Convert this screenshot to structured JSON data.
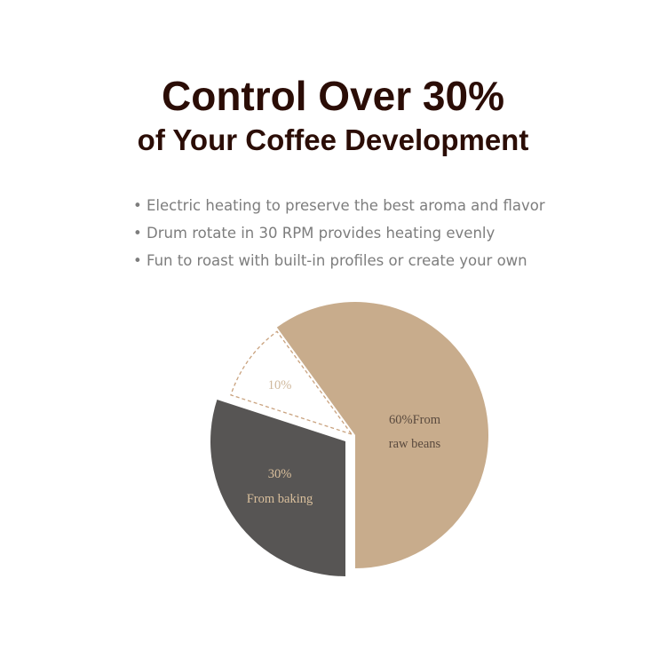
{
  "title_line1": "Control Over 30%",
  "title_line2": "of Your Coffee Development",
  "bullets": [
    "Electric heating to preserve the best aroma and flavor",
    "Drum rotate in 30 RPM provides heating evenly",
    "Fun to roast with built-in profiles or create your own"
  ],
  "chart_data": {
    "type": "pie",
    "slices": [
      {
        "value": 60,
        "label_line1": "60%From",
        "label_line2": "raw beans",
        "color": "#c8ac8c",
        "label_color": "#5a4a3e",
        "style": "solid"
      },
      {
        "value": 30,
        "label_line1": "30%",
        "label_line2": "From baking",
        "color": "#575554",
        "label_color": "#d9bf9c",
        "style": "solid-exploded"
      },
      {
        "value": 10,
        "label_line1": "10%",
        "label_line2": "",
        "color": "#ffffff",
        "label_color": "#cfb89c",
        "stroke": "#c9a27e",
        "style": "dashed"
      }
    ]
  }
}
